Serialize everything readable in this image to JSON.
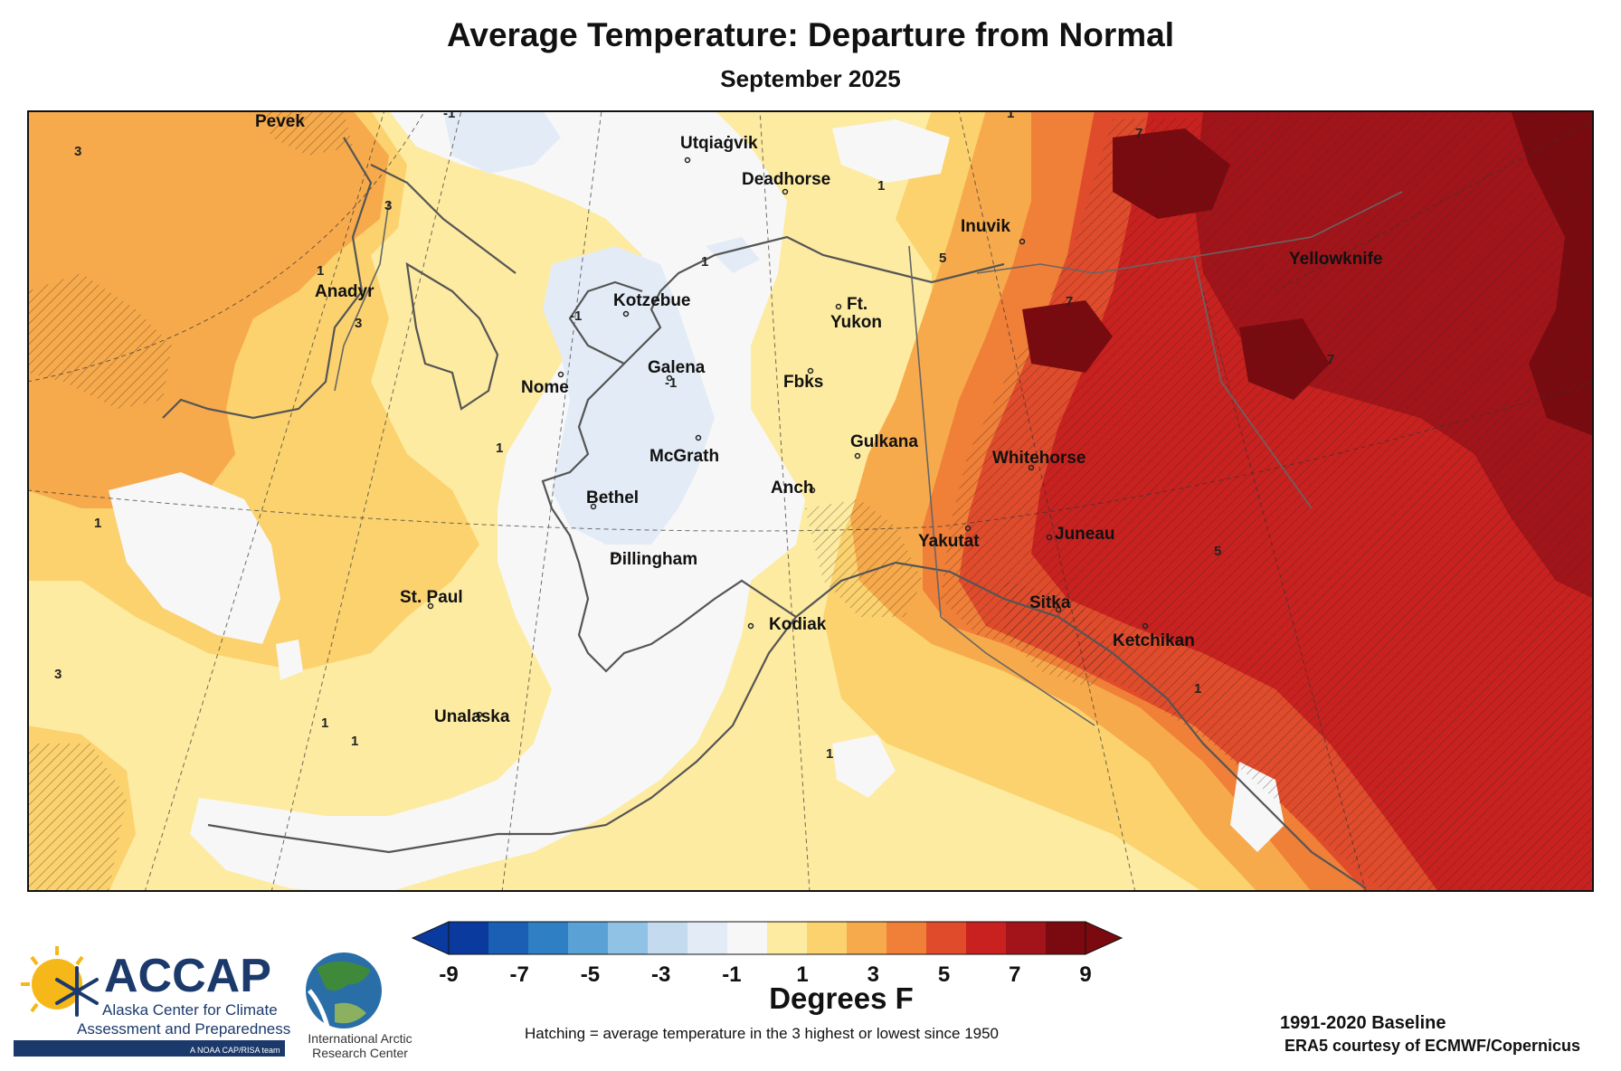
{
  "header": {
    "title": "Average Temperature: Departure from Normal",
    "subtitle": "September 2025"
  },
  "map": {
    "cities": [
      {
        "name": "Pevek"
      },
      {
        "name": "Anadyr"
      },
      {
        "name": "Utqiaġvik"
      },
      {
        "name": "Deadhorse"
      },
      {
        "name": "Inuvik"
      },
      {
        "name": "Yellowknife"
      },
      {
        "name": "Kotzebue"
      },
      {
        "name": "Ft."
      },
      {
        "name": "Yukon"
      },
      {
        "name": "Galena"
      },
      {
        "name": "Nome"
      },
      {
        "name": "Fbks"
      },
      {
        "name": "Gulkana"
      },
      {
        "name": "McGrath"
      },
      {
        "name": "Whitehorse"
      },
      {
        "name": "Bethel"
      },
      {
        "name": "Anch"
      },
      {
        "name": "Yakutat"
      },
      {
        "name": "Juneau"
      },
      {
        "name": "Dillingham"
      },
      {
        "name": "St. Paul"
      },
      {
        "name": "Sitka"
      },
      {
        "name": "Kodiak"
      },
      {
        "name": "Ketchikan"
      },
      {
        "name": "Unalaska"
      }
    ],
    "contour_labels": [
      "3",
      "3",
      "3",
      "3",
      "1",
      "1",
      "1",
      "1",
      "1",
      "1",
      "1",
      "1",
      "1",
      "1",
      "5",
      "5",
      "7",
      "7",
      "7",
      "-1",
      "-1",
      "-1"
    ]
  },
  "legend": {
    "units": "Degrees F",
    "ticks": [
      "-9",
      "-7",
      "-5",
      "-3",
      "-1",
      "1",
      "3",
      "5",
      "7",
      "9"
    ],
    "colors": [
      "#0a3a9e",
      "#1a5fb4",
      "#2f7fc4",
      "#5aa2d6",
      "#8fc2e4",
      "#c4daee",
      "#e3ecf6",
      "#f7f7f7",
      "#fdeba1",
      "#fbd26e",
      "#f7aa4c",
      "#f07f38",
      "#e04b2c",
      "#c9211f",
      "#a3141a",
      "#7a0a10"
    ],
    "left_arrow_color": "#0a3a9e",
    "right_arrow_color": "#7a0a10"
  },
  "footer": {
    "hatching_note": "Hatching = average temperature in the 3 highest or lowest since 1950",
    "baseline": "1991-2020 Baseline",
    "credit": "ERA5 courtesy of ECMWF/Copernicus"
  },
  "logos": {
    "accap_name": "ACCAP",
    "accap_line1": "Alaska Center for Climate",
    "accap_line2": "Assessment and Preparedness",
    "accap_tag": "A NOAA CAP/RISA team",
    "iarc_line1": "International Arctic",
    "iarc_line2": "Research Center"
  }
}
